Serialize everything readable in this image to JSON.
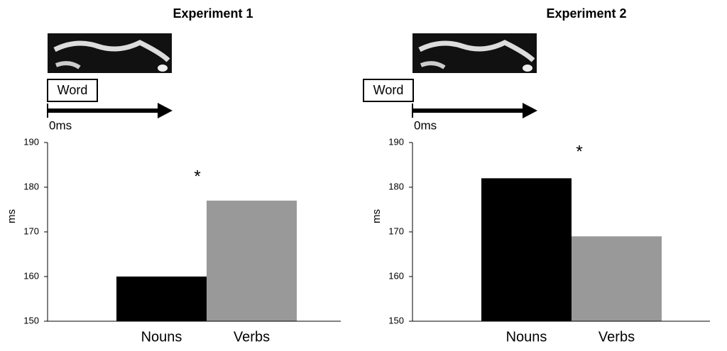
{
  "chart_data": [
    {
      "type": "bar",
      "title": "Experiment 1",
      "word_label": "Word",
      "time_label": "0ms",
      "y_label": "ms",
      "categories": [
        "Nouns",
        "Verbs"
      ],
      "values": [
        160,
        177
      ],
      "colors": [
        "#000000",
        "#999999"
      ],
      "ylim": [
        150,
        190
      ],
      "yticks": [
        150,
        160,
        170,
        180,
        190
      ],
      "annotation": "*"
    },
    {
      "type": "bar",
      "title": "Experiment 2",
      "word_label": "Word",
      "time_label": "0ms",
      "y_label": "ms",
      "categories": [
        "Nouns",
        "Verbs"
      ],
      "values": [
        182,
        169
      ],
      "colors": [
        "#000000",
        "#999999"
      ],
      "ylim": [
        150,
        190
      ],
      "yticks": [
        150,
        160,
        170,
        180,
        190
      ],
      "annotation": "*"
    }
  ]
}
